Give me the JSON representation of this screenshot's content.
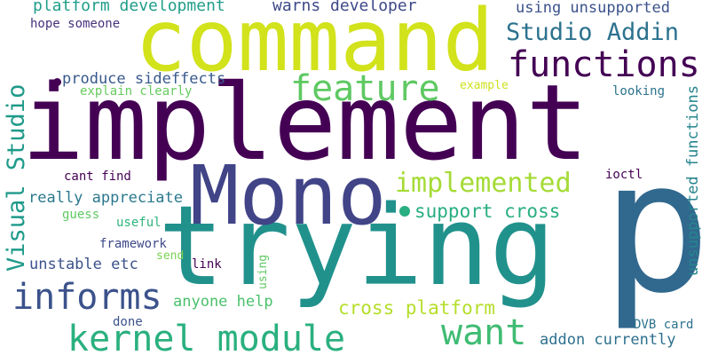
{
  "words": [
    {
      "text": "implement",
      "color": "#440154",
      "rotated": false
    },
    {
      "text": "trying",
      "color": "#21918c",
      "rotated": false
    },
    {
      "text": "p",
      "color": "#31688e",
      "rotated": false
    },
    {
      "text": "command",
      "color": "#d2e21b",
      "rotated": false
    },
    {
      "text": "Mono",
      "color": "#414487",
      "rotated": false
    },
    {
      "text": "functions",
      "color": "#440154",
      "rotated": false
    },
    {
      "text": "kernel module",
      "color": "#2ab07f",
      "rotated": false
    },
    {
      "text": "feature",
      "color": "#5ec962",
      "rotated": false
    },
    {
      "text": "want",
      "color": "#3fbc73",
      "rotated": false
    },
    {
      "text": "informs",
      "color": "#3b528b",
      "rotated": false
    },
    {
      "text": "implemented",
      "color": "#a5db36",
      "rotated": false
    },
    {
      "text": "Studio Addin",
      "color": "#2c728e",
      "rotated": false
    },
    {
      "text": "Visual Studio",
      "color": "#1f9a8a",
      "rotated": true
    },
    {
      "text": "support cross",
      "color": "#28ae80",
      "rotated": false
    },
    {
      "text": "cross platform",
      "color": "#b5de2b",
      "rotated": false
    },
    {
      "text": "platform development",
      "color": "#1f9e89",
      "rotated": false
    },
    {
      "text": "warns developer",
      "color": "#3e4989",
      "rotated": false
    },
    {
      "text": "using unsupported",
      "color": "#3b528b",
      "rotated": false
    },
    {
      "text": "produce sideffects",
      "color": "#38598c",
      "rotated": false
    },
    {
      "text": "addon currently",
      "color": "#2d708e",
      "rotated": false
    },
    {
      "text": "unsupported functions",
      "color": "#25858e",
      "rotated": true
    },
    {
      "text": "really appreciate",
      "color": "#2a788e",
      "rotated": false
    },
    {
      "text": "unstable etc",
      "color": "#3b528b",
      "rotated": false
    },
    {
      "text": "anyone help",
      "color": "#4ac16d",
      "rotated": false
    },
    {
      "text": "hope someone",
      "color": "#46327e",
      "rotated": false
    },
    {
      "text": "explain clearly",
      "color": "#65cb5e",
      "rotated": false
    },
    {
      "text": "example",
      "color": "#cde11d",
      "rotated": false
    },
    {
      "text": "looking",
      "color": "#2c728e",
      "rotated": false
    },
    {
      "text": "cant find",
      "color": "#440154",
      "rotated": false
    },
    {
      "text": "ioctl",
      "color": "#440154",
      "rotated": false
    },
    {
      "text": "guess",
      "color": "#5ec962",
      "rotated": false
    },
    {
      "text": "useful",
      "color": "#2fb47c",
      "rotated": false
    },
    {
      "text": "framework",
      "color": "#3e4989",
      "rotated": false
    },
    {
      "text": "send",
      "color": "#7ad151",
      "rotated": false
    },
    {
      "text": "link",
      "color": "#440154",
      "rotated": false
    },
    {
      "text": "using",
      "color": "#5ec962",
      "rotated": true
    },
    {
      "text": "done",
      "color": "#3b528b",
      "rotated": false
    },
    {
      "text": "DVB card",
      "color": "#2c728e",
      "rotated": false
    }
  ]
}
